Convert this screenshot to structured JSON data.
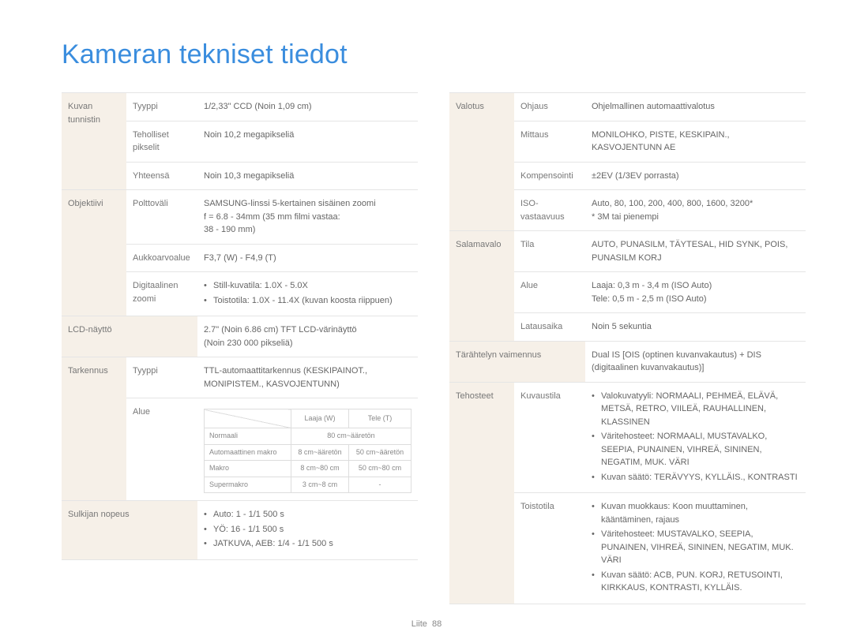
{
  "title": "Kameran tekniset tiedot",
  "footer": {
    "section": "Liite",
    "page": "88"
  },
  "sensor": {
    "cat": "Kuvan tunnistin",
    "type_label": "Tyyppi",
    "type_val": "1/2,33\" CCD (Noin 1,09 cm)",
    "eff_label": "Teholliset pikselit",
    "eff_val": "Noin 10,2 megapikseliä",
    "total_label": "Yhteensä",
    "total_val": "Noin 10,3 megapikseliä"
  },
  "lens": {
    "cat": "Objektiivi",
    "focal_label": "Polttoväli",
    "focal_val": "SAMSUNG-linssi 5-kertainen sisäinen zoomi\nf = 6.8 - 34mm (35 mm filmi vastaa:\n38 - 190 mm)",
    "aperture_label": "Aukkoarvoalue",
    "aperture_val": "F3,7 (W) - F4,9 (T)",
    "dzoom_label": "Digitaalinen zoomi",
    "dzoom_items": [
      "Still-kuvatila: 1.0X - 5.0X",
      "Toistotila: 1.0X - 11.4X (kuvan koosta riippuen)"
    ]
  },
  "lcd": {
    "cat": "LCD-näyttö",
    "val": "2.7\" (Noin 6.86 cm) TFT LCD-värinäyttö\n(Noin 230 000 pikseliä)"
  },
  "focus": {
    "cat": "Tarkennus",
    "type_label": "Tyyppi",
    "type_val": "TTL-automaattitarkennus (KESKIPAINOT., MONIPISTEM., KASVOJENTUNN)",
    "range_label": "Alue",
    "table": {
      "col_wide": "Laaja (W)",
      "col_tele": "Tele (T)",
      "rows": [
        {
          "name": "Normaali",
          "wide": "80 cm~ääretön",
          "tele": "",
          "span": true
        },
        {
          "name": "Automaattinen makro",
          "wide": "8 cm~ääretön",
          "tele": "50 cm~ääretön"
        },
        {
          "name": "Makro",
          "wide": "8 cm~80 cm",
          "tele": "50 cm~80 cm"
        },
        {
          "name": "Supermakro",
          "wide": "3 cm~8 cm",
          "tele": "-"
        }
      ]
    }
  },
  "shutter": {
    "cat": "Sulkijan nopeus",
    "items": [
      "Auto: 1 - 1/1 500 s",
      "YÖ: 16 - 1/1 500 s",
      "JATKUVA, AEB: 1/4 - 1/1 500 s"
    ]
  },
  "exposure": {
    "cat": "Valotus",
    "control_label": "Ohjaus",
    "control_val": "Ohjelmallinen automaattivalotus",
    "metering_label": "Mittaus",
    "metering_val": "MONILOHKO, PISTE, KESKIPAIN., KASVOJENTUNN AE",
    "comp_label": "Kompensointi",
    "comp_val": "±2EV (1/3EV porrasta)",
    "iso_label": "ISO-vastaavuus",
    "iso_val": "Auto, 80, 100, 200, 400, 800, 1600, 3200*\n* 3M tai pienempi"
  },
  "flash": {
    "cat": "Salamavalo",
    "mode_label": "Tila",
    "mode_val": "AUTO, PUNASILM, TÄYTESAL, HID SYNK, POIS, PUNASILM KORJ",
    "range_label": "Alue",
    "range_val": "Laaja: 0,3 m - 3,4 m (ISO Auto)\nTele: 0,5 m - 2,5 m (ISO Auto)",
    "charge_label": "Latausaika",
    "charge_val": "Noin 5 sekuntia"
  },
  "shake": {
    "cat": "Tärähtelyn vaimennus",
    "val": "Dual IS [OIS (optinen kuvanvakautus) + DIS (digitaalinen kuvanvakautus)]"
  },
  "effects": {
    "cat": "Tehosteet",
    "shoot_label": "Kuvaustila",
    "shoot_items": [
      "Valokuvatyyli: NORMAALI, PEHMEÄ, ELÄVÄ, METSÄ, RETRO, VIILEÄ, RAUHALLINEN, KLASSINEN",
      "Väritehosteet: NORMAALI, MUSTAVALKO, SEEPIA, PUNAINEN, VIHREÄ, SININEN, NEGATIM, MUK. VÄRI",
      "Kuvan säätö: TERÄVYYS, KYLLÄIS., KONTRASTI"
    ],
    "play_label": "Toistotila",
    "play_items": [
      "Kuvan muokkaus: Koon muuttaminen, kääntäminen, rajaus",
      "Väritehosteet: MUSTAVALKO, SEEPIA, PUNAINEN, VIHREÄ, SININEN, NEGATIM, MUK. VÄRI",
      "Kuvan säätö: ACB, PUN. KORJ, RETUSOINTI, KIRKKAUS, KONTRASTI, KYLLÄIS."
    ]
  }
}
